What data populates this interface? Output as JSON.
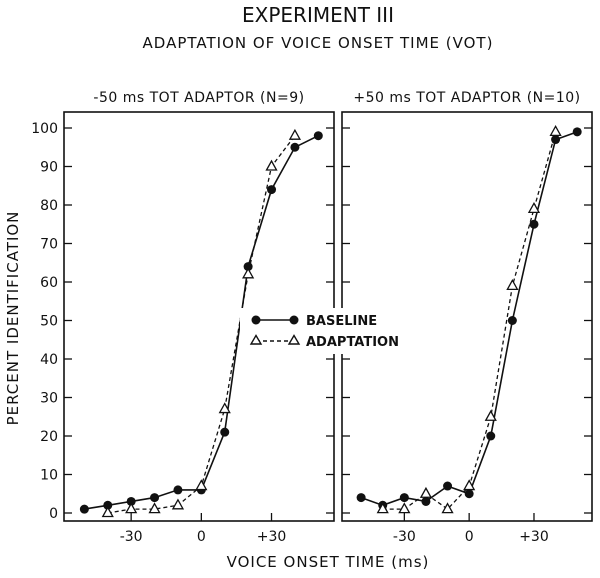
{
  "title": "EXPERIMENT III",
  "subtitle": "ADAPTATION OF VOICE ONSET TIME (VOT)",
  "xlabel": "VOICE ONSET TIME (ms)",
  "ylabel": "PERCENT IDENTIFICATION",
  "legend": {
    "baseline": "BASELINE",
    "adaptation": "ADAPTATION"
  },
  "chart_data": [
    {
      "type": "line",
      "title": "-50 ms TOT ADAPTOR (N=9)",
      "xlabel": "VOICE ONSET TIME (ms)",
      "ylabel": "PERCENT IDENTIFICATION",
      "ylim": [
        0,
        100
      ],
      "xlim": [
        -57,
        55
      ],
      "xticks": [
        -30,
        0,
        30
      ],
      "xtick_labels": [
        "-30",
        "0",
        "+30"
      ],
      "yticks": [
        0,
        10,
        20,
        30,
        40,
        50,
        60,
        70,
        80,
        90,
        100
      ],
      "series": [
        {
          "name": "BASELINE",
          "style": "solid",
          "marker": "filled-circle",
          "x": [
            -50,
            -40,
            -30,
            -20,
            -10,
            0,
            10,
            20,
            30,
            40,
            50
          ],
          "y": [
            1,
            2,
            3,
            4,
            6,
            6,
            21,
            64,
            84,
            95,
            98
          ]
        },
        {
          "name": "ADAPTATION",
          "style": "dashed",
          "marker": "open-triangle",
          "x": [
            -40,
            -30,
            -20,
            -10,
            0,
            10,
            20,
            30,
            40
          ],
          "y": [
            0,
            1,
            1,
            2,
            7,
            27,
            62,
            90,
            98
          ]
        }
      ]
    },
    {
      "type": "line",
      "title": "+50 ms TOT ADAPTOR (N=10)",
      "xlabel": "VOICE ONSET TIME (ms)",
      "ylabel": "PERCENT IDENTIFICATION",
      "ylim": [
        0,
        100
      ],
      "xlim": [
        -57,
        55
      ],
      "xticks": [
        -30,
        0,
        30
      ],
      "xtick_labels": [
        "-30",
        "0",
        "+30"
      ],
      "yticks": [
        0,
        10,
        20,
        30,
        40,
        50,
        60,
        70,
        80,
        90,
        100
      ],
      "series": [
        {
          "name": "BASELINE",
          "style": "solid",
          "marker": "filled-circle",
          "x": [
            -50,
            -40,
            -30,
            -20,
            -10,
            0,
            10,
            20,
            30,
            40,
            50
          ],
          "y": [
            4,
            2,
            4,
            3,
            7,
            5,
            20,
            50,
            75,
            97,
            99
          ]
        },
        {
          "name": "ADAPTATION",
          "style": "dashed",
          "marker": "open-triangle",
          "x": [
            -40,
            -30,
            -20,
            -10,
            0,
            10,
            20,
            30,
            40
          ],
          "y": [
            1,
            1,
            5,
            1,
            7,
            25,
            59,
            79,
            99
          ]
        }
      ]
    }
  ]
}
